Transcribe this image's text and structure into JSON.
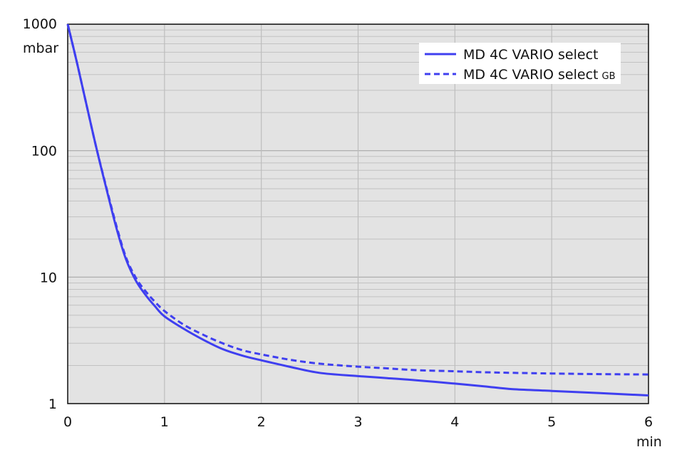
{
  "chart_data": {
    "type": "line",
    "title": "",
    "xlabel": "",
    "ylabel": "",
    "x_unit": "min",
    "y_unit": "mbar",
    "xlim": [
      0,
      6
    ],
    "ylim": [
      1,
      1000
    ],
    "y_scale": "log",
    "x_ticks": [
      "0",
      "1",
      "2",
      "3",
      "4",
      "5",
      "6"
    ],
    "y_ticks": [
      "1",
      "10",
      "100",
      "1000"
    ],
    "grid": true,
    "plot_background": "#e3e3e3",
    "legend_position": "top-right",
    "series": [
      {
        "name": "MD 4C VARIO select",
        "name_suffix": "",
        "color": "#3f3ff0",
        "style": "solid",
        "x": [
          0,
          0.1,
          0.2,
          0.3,
          0.4,
          0.5,
          0.6,
          0.7,
          0.8,
          0.9,
          1.0,
          1.2,
          1.4,
          1.6,
          1.8,
          2.0,
          2.3,
          2.6,
          3.0,
          3.3,
          3.6,
          4.0,
          4.3,
          4.6,
          5.0,
          5.5,
          6.0
        ],
        "y": [
          1000,
          480,
          220,
          102,
          50,
          25,
          14,
          9.5,
          7.3,
          5.9,
          4.9,
          3.9,
          3.2,
          2.7,
          2.4,
          2.2,
          1.95,
          1.75,
          1.65,
          1.59,
          1.53,
          1.44,
          1.37,
          1.3,
          1.26,
          1.21,
          1.16
        ]
      },
      {
        "name": "MD 4C VARIO select",
        "name_suffix": "GB",
        "color": "#3f3ff0",
        "style": "dashed",
        "x": [
          0,
          0.1,
          0.2,
          0.3,
          0.4,
          0.5,
          0.6,
          0.7,
          0.8,
          0.9,
          1.0,
          1.2,
          1.4,
          1.6,
          1.8,
          2.0,
          2.3,
          2.6,
          3.0,
          3.3,
          3.6,
          4.0,
          4.3,
          4.6,
          5.0,
          5.5,
          6.0
        ],
        "y": [
          1000,
          480,
          220,
          102,
          51,
          26,
          14.5,
          10,
          7.8,
          6.4,
          5.4,
          4.2,
          3.5,
          3.0,
          2.65,
          2.45,
          2.22,
          2.07,
          1.96,
          1.9,
          1.84,
          1.8,
          1.77,
          1.75,
          1.73,
          1.71,
          1.7
        ]
      }
    ]
  }
}
